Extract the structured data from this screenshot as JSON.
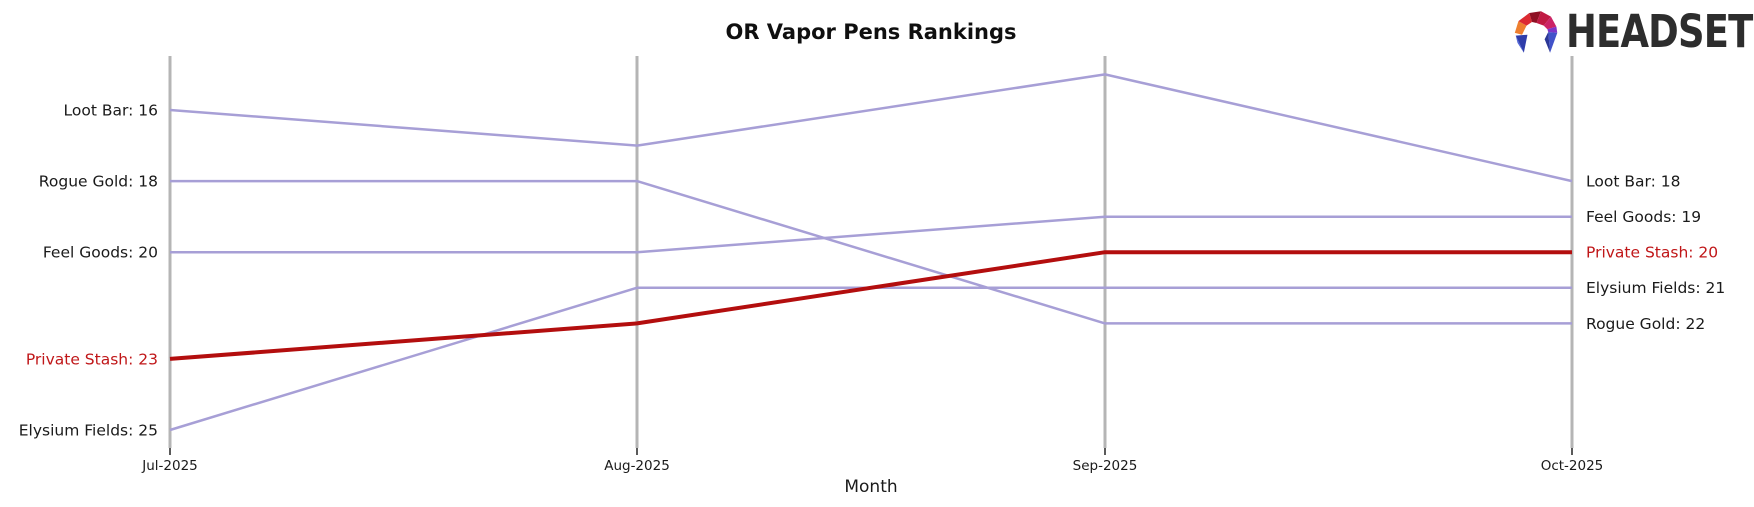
{
  "title": "OR Vapor Pens Rankings",
  "xlabel": "Month",
  "logo": {
    "brand": "HEADSET"
  },
  "colors": {
    "axis": "#b5b5b5",
    "tick": "#000000",
    "text": "#1a1a1a",
    "series_purple": "#a79fd6",
    "highlight_red_line": "#b30e0e",
    "highlight_red_label": "#c01618"
  },
  "chart_data": {
    "type": "line",
    "subtype": "bump-ranking",
    "title": "OR Vapor Pens Rankings",
    "xlabel": "Month",
    "x": [
      "Jul-2025",
      "Aug-2025",
      "Sep-2025",
      "Oct-2025"
    ],
    "y_axis": {
      "measure": "rank",
      "inverted": true,
      "min_rank_shown": 15,
      "max_rank_shown": 25,
      "gridlines": false
    },
    "legend": "none-direct-line-end-labels",
    "series": [
      {
        "name": "Loot Bar",
        "ranks": [
          16,
          17,
          15,
          18
        ],
        "color": "#a79fd6",
        "highlight": false,
        "left_label": "Loot Bar: 16",
        "right_label": "Loot Bar: 18",
        "label_color": "#1a1a1a"
      },
      {
        "name": "Rogue Gold",
        "ranks": [
          18,
          18,
          22,
          22
        ],
        "color": "#a79fd6",
        "highlight": false,
        "left_label": "Rogue Gold: 18",
        "right_label": "Rogue Gold: 22",
        "label_color": "#1a1a1a"
      },
      {
        "name": "Feel Goods",
        "ranks": [
          20,
          20,
          19,
          19
        ],
        "color": "#a79fd6",
        "highlight": false,
        "left_label": "Feel Goods: 20",
        "right_label": "Feel Goods: 19",
        "label_color": "#1a1a1a"
      },
      {
        "name": "Private Stash",
        "ranks": [
          23,
          22,
          20,
          20
        ],
        "color": "#b30e0e",
        "highlight": true,
        "left_label": "Private Stash: 23",
        "right_label": "Private Stash: 20",
        "label_color": "#c01618"
      },
      {
        "name": "Elysium Fields",
        "ranks": [
          25,
          21,
          21,
          21
        ],
        "color": "#a79fd6",
        "highlight": false,
        "left_label": "Elysium Fields: 25",
        "right_label": "Elysium Fields: 21",
        "label_color": "#1a1a1a"
      }
    ]
  }
}
